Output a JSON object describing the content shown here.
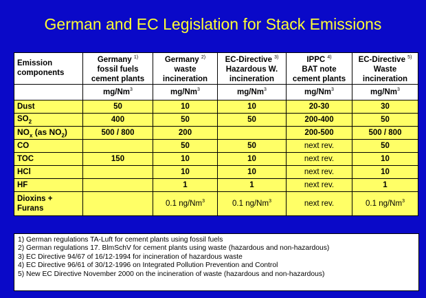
{
  "title": "German and EC Legislation for Stack Emissions",
  "header": {
    "col0": [
      "Emission",
      "components"
    ],
    "cols": [
      {
        "lines": [
          "Germany",
          "fossil fuels",
          "cement plants"
        ],
        "note": "1)"
      },
      {
        "lines": [
          "Germany",
          "waste",
          "incineration"
        ],
        "note": "2)"
      },
      {
        "lines": [
          "EC-Directive",
          "Hazardous W.",
          "incineration"
        ],
        "note": "3)"
      },
      {
        "lines": [
          "IPPC",
          "BAT note",
          "cement plants"
        ],
        "note": "4)"
      },
      {
        "lines": [
          "EC-Directive",
          "Waste",
          "incineration"
        ],
        "note": "5)"
      }
    ]
  },
  "units": [
    "mg/Nm",
    "mg/Nm",
    "mg/Nm",
    "mg/Nm",
    "mg/Nm"
  ],
  "units_sup": "3",
  "rows": [
    {
      "label": "Dust",
      "values": [
        "50",
        "10",
        "10",
        "20-30",
        "30"
      ]
    },
    {
      "label": "SO",
      "label_sub": "2",
      "values": [
        "400",
        "50",
        "50",
        "200-400",
        "50"
      ]
    },
    {
      "label": "NO",
      "label_sub": "x",
      "label_rest": " (as NO",
      "label_sub2": "2",
      "label_end": ")",
      "values": [
        "500 / 800",
        "200",
        "",
        "200-500",
        "500 / 800"
      ]
    },
    {
      "label": "CO",
      "values": [
        "",
        "50",
        "50",
        "next rev.",
        "50"
      ]
    },
    {
      "label": "TOC",
      "values": [
        "150",
        "10",
        "10",
        "next rev.",
        "10"
      ]
    },
    {
      "label": "HCl",
      "values": [
        "",
        "10",
        "10",
        "next rev.",
        "10"
      ]
    },
    {
      "label": "HF",
      "values": [
        "",
        "1",
        "1",
        "next rev.",
        "1"
      ]
    },
    {
      "label": "Dioxins +",
      "label2": "Furans",
      "values": [
        "",
        "0.1 ng/Nm",
        "0.1 ng/Nm",
        "next rev.",
        "0.1 ng/Nm"
      ],
      "sup": "3"
    }
  ],
  "footnotes": [
    "1)  German regulations TA-Luft for cement plants using fossil fuels",
    "2)  German regulations 17. BlmSchV for cement plants using waste (hazardous and non-hazardous)",
    "3)  EC Directive 94/67 of 16/12-1994 for incineration of hazardous waste",
    "4)  EC Directive 96/61 of 30/12-1996 on Integrated Pollution Prevention and Control",
    "5)  New EC Directive November 2000 on the incineration of waste (hazardous and non-hazardous)"
  ]
}
